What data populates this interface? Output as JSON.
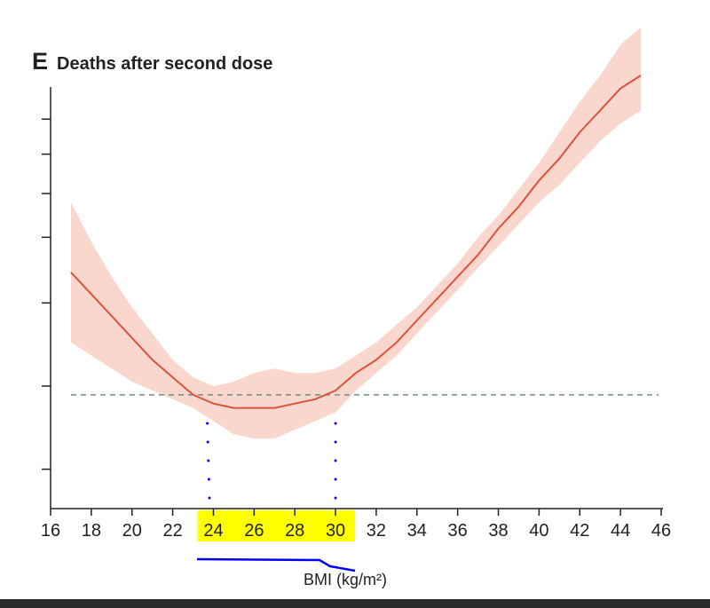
{
  "chart_data": {
    "type": "line",
    "panel_letter": "E",
    "title": "Deaths after second dose",
    "xlabel": "BMI (kg/m²)",
    "ylabel": "",
    "xlim": [
      16,
      46
    ],
    "x_ticks": [
      16,
      18,
      20,
      22,
      24,
      26,
      28,
      30,
      32,
      34,
      36,
      38,
      40,
      42,
      44,
      46
    ],
    "ylim": [
      0,
      1
    ],
    "grid": false,
    "legend": "none",
    "reference_line": 0.26,
    "series": [
      {
        "x": [
          17,
          18,
          19,
          20,
          21,
          22,
          23,
          24,
          25,
          26,
          27,
          28,
          29,
          30,
          31,
          32,
          33,
          34,
          35,
          36,
          37,
          38,
          39,
          40,
          41,
          42,
          43,
          44,
          45
        ],
        "y": [
          0.54,
          0.49,
          0.44,
          0.39,
          0.34,
          0.3,
          0.26,
          0.24,
          0.23,
          0.23,
          0.23,
          0.24,
          0.25,
          0.27,
          0.31,
          0.34,
          0.38,
          0.43,
          0.48,
          0.53,
          0.58,
          0.64,
          0.69,
          0.75,
          0.8,
          0.86,
          0.91,
          0.96,
          0.99
        ],
        "lower": [
          0.38,
          0.35,
          0.32,
          0.29,
          0.27,
          0.25,
          0.23,
          0.2,
          0.17,
          0.16,
          0.16,
          0.18,
          0.2,
          0.22,
          0.27,
          0.31,
          0.35,
          0.4,
          0.45,
          0.5,
          0.55,
          0.6,
          0.65,
          0.7,
          0.74,
          0.79,
          0.84,
          0.88,
          0.91
        ],
        "upper": [
          0.7,
          0.61,
          0.53,
          0.46,
          0.4,
          0.34,
          0.3,
          0.28,
          0.29,
          0.31,
          0.32,
          0.31,
          0.31,
          0.32,
          0.35,
          0.38,
          0.42,
          0.46,
          0.51,
          0.56,
          0.62,
          0.67,
          0.73,
          0.79,
          0.86,
          0.93,
          0.99,
          1.06,
          1.1
        ]
      }
    ],
    "annotations": {
      "highlight_ticks": [
        24,
        26,
        28,
        30
      ],
      "crossing_x": [
        23.7,
        30
      ],
      "highlight_color": "#ffff00",
      "annotation_color": "#0000ff"
    }
  },
  "colors": {
    "line": "#d9533f",
    "band": "#fad7cd",
    "axis": "#222222",
    "reference": "#6f8a8a"
  }
}
